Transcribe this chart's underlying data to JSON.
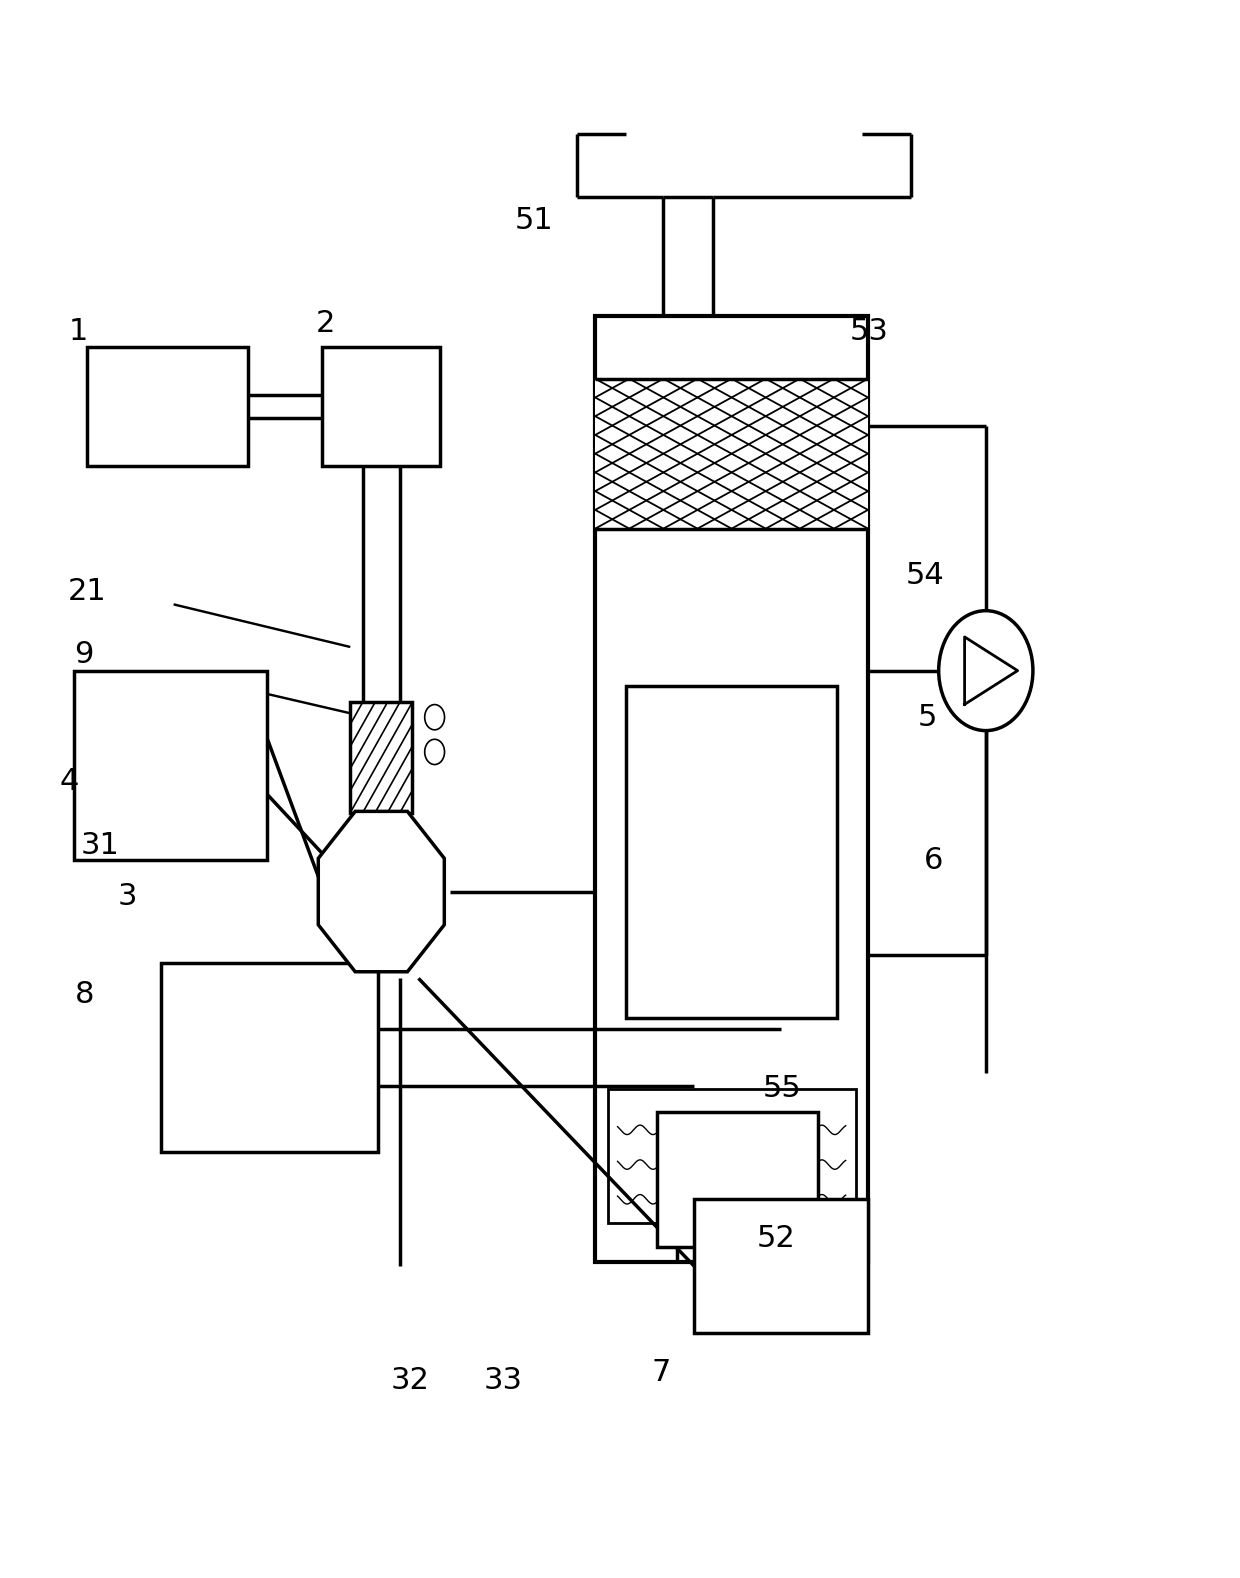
{
  "fig_width": 12.4,
  "fig_height": 15.78,
  "bg_color": "#ffffff",
  "line_color": "#000000",
  "line_width": 2.5,
  "label_fontsize": 22
}
